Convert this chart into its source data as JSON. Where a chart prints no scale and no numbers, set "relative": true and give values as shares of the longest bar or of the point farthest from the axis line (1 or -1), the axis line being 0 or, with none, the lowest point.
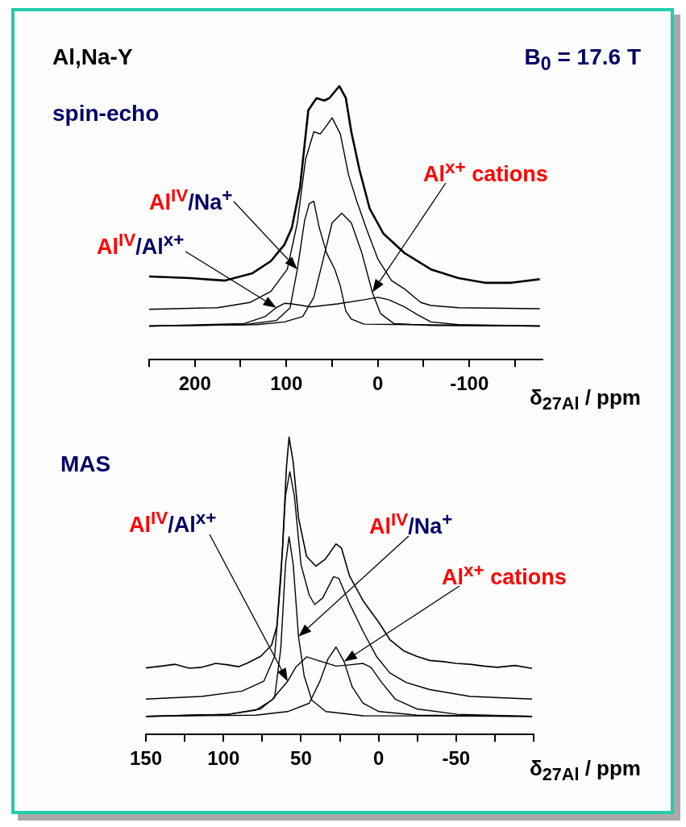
{
  "chart_data": [
    {
      "type": "line",
      "title": "Al,Na-Y",
      "subtitle": "spin-echo",
      "xlabel": "δ$_{27Al}$ / ppm",
      "relative": true,
      "xlim": [
        250,
        -180
      ],
      "xticks": [
        {
          "value": 250,
          "label": null
        },
        200,
        {
          "value": 150,
          "label": null
        },
        100,
        {
          "value": 50,
          "label": null
        },
        0,
        {
          "value": -50,
          "label": null
        },
        -100,
        {
          "value": -150,
          "label": null
        }
      ],
      "series": [
        {
          "color": "#000000",
          "x": [
            250,
            205,
            167,
            137,
            117,
            102,
            94,
            85,
            76,
            67,
            58.5,
            53,
            42,
            35,
            29,
            20,
            9,
            -6,
            -29,
            -58,
            -88,
            -117,
            -146,
            -177
          ],
          "values": [
            0.304,
            0.298,
            0.289,
            0.316,
            0.36,
            0.421,
            0.482,
            0.632,
            0.912,
            0.956,
            0.947,
            0.956,
            1.0,
            0.956,
            0.833,
            0.693,
            0.553,
            0.461,
            0.39,
            0.33,
            0.298,
            0.281,
            0.281,
            0.294
          ]
        },
        {
          "color": "#000000",
          "x": [
            250,
            175,
            140,
            117,
            99,
            88,
            79,
            70,
            63,
            57,
            50,
            41,
            32,
            23,
            12,
            0,
            -15,
            -29,
            -47,
            -58,
            -88,
            -177
          ],
          "values": [
            0.184,
            0.19,
            0.209,
            0.249,
            0.33,
            0.5,
            0.732,
            0.833,
            0.825,
            0.851,
            0.884,
            0.825,
            0.675,
            0.579,
            0.474,
            0.368,
            0.289,
            0.259,
            0.209,
            0.198,
            0.19,
            0.186
          ]
        },
        {
          "color": "#000000",
          "x": [
            250,
            146,
            111,
            96,
            88,
            80,
            75,
            70,
            64,
            56,
            47,
            41,
            35,
            29,
            15,
            -177
          ],
          "values": [
            0.123,
            0.128,
            0.143,
            0.189,
            0.33,
            0.509,
            0.57,
            0.579,
            0.482,
            0.39,
            0.33,
            0.269,
            0.178,
            0.148,
            0.13,
            0.123
          ]
        },
        {
          "color": "#000000",
          "x": [
            250,
            132,
            102,
            82,
            70,
            58,
            50,
            39.5,
            29,
            17.5,
            6,
            -3,
            -17.5,
            -58,
            -177
          ],
          "values": [
            0.123,
            0.128,
            0.138,
            0.158,
            0.228,
            0.39,
            0.5,
            0.535,
            0.5,
            0.39,
            0.246,
            0.168,
            0.132,
            0.125,
            0.123
          ]
        },
        {
          "color": "#000000",
          "x": [
            250,
            146,
            123,
            111,
            102,
            94,
            73,
            44,
            15,
            0,
            -12,
            -29,
            -44,
            -58,
            -88,
            -177
          ],
          "values": [
            0.123,
            0.132,
            0.158,
            0.19,
            0.206,
            0.204,
            0.193,
            0.204,
            0.219,
            0.228,
            0.219,
            0.193,
            0.163,
            0.138,
            0.128,
            0.123
          ]
        }
      ],
      "annotations": [
        "Al$^{IV}$/Na$^{+}$",
        "Al$^{IV}$/Al$^{x+}$",
        "Al$^{x+}$ cations",
        "B$_{0}$ = 17.6 T"
      ]
    },
    {
      "type": "line",
      "subtitle": "MAS",
      "xlabel": "δ$_{27Al}$ / ppm",
      "relative": true,
      "xlim": [
        150,
        -100
      ],
      "xticks": [
        150,
        {
          "value": 125,
          "label": null
        },
        100,
        {
          "value": 75,
          "label": null
        },
        50,
        {
          "value": 25,
          "label": null
        },
        0,
        {
          "value": -25,
          "label": null
        },
        -50,
        {
          "value": -75,
          "label": null
        },
        {
          "value": -100,
          "label": null
        }
      ],
      "series": [
        {
          "color": "#000000",
          "x": [
            150,
            140,
            131,
            122,
            114,
            105,
            97,
            90,
            85,
            76,
            69,
            65.5,
            62,
            59.4,
            57.7,
            55,
            51.6,
            46.4,
            40.4,
            34.3,
            27.4,
            23.9,
            18.7,
            10,
            -0.3,
            -7.3,
            -16,
            -24.6,
            -33,
            -42,
            -50,
            -59,
            -68,
            -76.6,
            -88,
            -99
          ],
          "values": [
            0.224,
            0.23,
            0.236,
            0.223,
            0.226,
            0.239,
            0.234,
            0.228,
            0.239,
            0.263,
            0.3,
            0.366,
            0.618,
            0.897,
            1.0,
            0.915,
            0.728,
            0.599,
            0.566,
            0.59,
            0.641,
            0.627,
            0.533,
            0.45,
            0.376,
            0.319,
            0.282,
            0.263,
            0.249,
            0.245,
            0.239,
            0.236,
            0.23,
            0.226,
            0.232,
            0.222
          ]
        },
        {
          "color": "#000000",
          "x": [
            150,
            114,
            88,
            74,
            67,
            63,
            60,
            57.2,
            54.3,
            50,
            44.7,
            41.2,
            36,
            29,
            25.6,
            18.7,
            10,
            1.4,
            -7.3,
            -17.7,
            -33,
            -59,
            -99
          ],
          "values": [
            0.119,
            0.128,
            0.146,
            0.179,
            0.263,
            0.525,
            0.803,
            0.884,
            0.803,
            0.571,
            0.469,
            0.437,
            0.459,
            0.531,
            0.525,
            0.44,
            0.347,
            0.263,
            0.207,
            0.175,
            0.151,
            0.128,
            0.119
          ]
        },
        {
          "color": "#000000",
          "x": [
            150,
            96.7,
            76,
            67,
            63,
            60,
            57.7,
            55,
            51.6,
            48,
            43,
            34,
            10,
            -99
          ],
          "values": [
            0.061,
            0.068,
            0.086,
            0.124,
            0.291,
            0.571,
            0.665,
            0.571,
            0.329,
            0.198,
            0.115,
            0.077,
            0.063,
            0.061
          ]
        },
        {
          "color": "#000000",
          "x": [
            150,
            96.7,
            79,
            69,
            58.6,
            53.4,
            46.4,
            37.8,
            27.4,
            18.7,
            10,
            4.9,
            -2,
            -10.7,
            -24.6,
            -50.6,
            -99
          ],
          "values": [
            0.061,
            0.068,
            0.082,
            0.115,
            0.179,
            0.226,
            0.261,
            0.247,
            0.23,
            0.234,
            0.239,
            0.226,
            0.175,
            0.119,
            0.086,
            0.068,
            0.061
          ]
        },
        {
          "color": "#000000",
          "x": [
            150,
            79,
            58.6,
            44.7,
            37.8,
            32.6,
            27.4,
            22.2,
            17,
            10,
            -0.3,
            -24.6,
            -99
          ],
          "values": [
            0.061,
            0.065,
            0.077,
            0.105,
            0.179,
            0.254,
            0.294,
            0.245,
            0.16,
            0.105,
            0.077,
            0.065,
            0.061
          ]
        }
      ],
      "annotations": [
        "Al$^{IV}$/Al$^{x+}$",
        "Al$^{IV}$/Na$^{+}$",
        "Al$^{x+}$ cations"
      ]
    }
  ]
}
